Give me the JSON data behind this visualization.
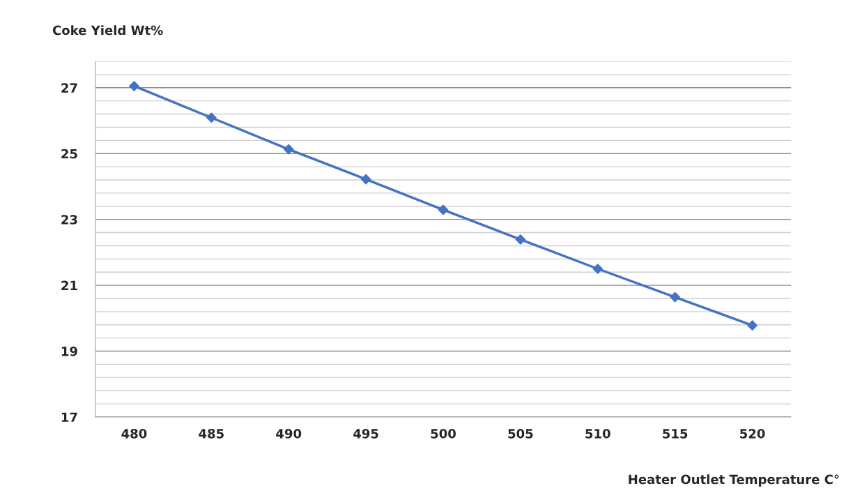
{
  "chart_data": {
    "type": "line",
    "xlabel": "Heater Outlet Temperature C°",
    "ylabel": "Coke Yield Wt%",
    "categories": [
      "480",
      "485",
      "490",
      "495",
      "500",
      "505",
      "510",
      "515",
      "520"
    ],
    "series": [
      {
        "color": "#4472c4",
        "values": [
          27.05,
          26.09,
          25.13,
          24.22,
          23.29,
          22.39,
          21.5,
          20.64,
          19.78
        ]
      }
    ],
    "ylim": [
      17,
      27.8
    ],
    "yticks": [
      17,
      {
        "value": 17.4,
        "label": null
      },
      {
        "value": 17.8,
        "label": null
      },
      {
        "value": 18.2,
        "label": null
      },
      {
        "value": 18.6,
        "label": null
      },
      19,
      {
        "value": 19.4,
        "label": null
      },
      {
        "value": 19.8,
        "label": null
      },
      {
        "value": 20.2,
        "label": null
      },
      {
        "value": 20.6,
        "label": null
      },
      21,
      {
        "value": 21.4,
        "label": null
      },
      {
        "value": 21.8,
        "label": null
      },
      {
        "value": 22.2,
        "label": null
      },
      {
        "value": 22.6,
        "label": null
      },
      23,
      {
        "value": 23.4,
        "label": null
      },
      {
        "value": 23.8,
        "label": null
      },
      {
        "value": 24.2,
        "label": null
      },
      {
        "value": 24.6,
        "label": null
      },
      25,
      {
        "value": 25.4,
        "label": null
      },
      {
        "value": 25.8,
        "label": null
      },
      {
        "value": 26.2,
        "label": null
      },
      {
        "value": 26.6,
        "label": null
      },
      27,
      {
        "value": 27.4,
        "label": null
      },
      {
        "value": 27.8,
        "label": null
      }
    ],
    "grid": "y",
    "marker": "diamond",
    "line_style": "solid"
  }
}
